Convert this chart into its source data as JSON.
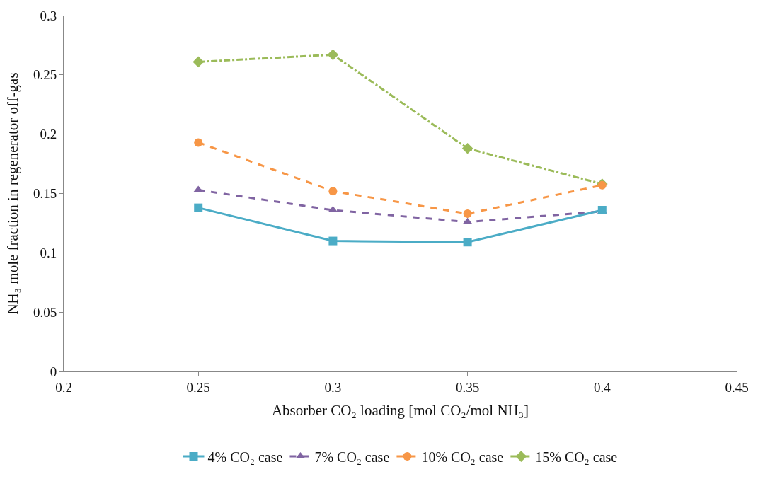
{
  "chart_data": {
    "type": "line",
    "xlabel": "Absorber CO₂ loading [mol CO₂/mol NH₃]",
    "ylabel": "NH₃ mole fraction in regenerator off-gas",
    "x": [
      0.25,
      0.3,
      0.35,
      0.4
    ],
    "series": [
      {
        "name": "4% CO₂ case",
        "color": "#4bacc6",
        "values": [
          0.138,
          0.11,
          0.109,
          0.136
        ],
        "marker": "square",
        "line_style": "solid"
      },
      {
        "name": "7% CO₂ case",
        "color": "#8064a2",
        "values": [
          0.153,
          0.136,
          0.126,
          0.135
        ],
        "marker": "triangle",
        "line_style": "dashed"
      },
      {
        "name": "10% CO₂ case",
        "color": "#f79646",
        "values": [
          0.193,
          0.152,
          0.133,
          0.157
        ],
        "marker": "circle",
        "line_style": "dashed"
      },
      {
        "name": "15% CO₂ case",
        "color": "#9bbb59",
        "values": [
          0.261,
          0.267,
          0.188,
          0.158
        ],
        "marker": "diamond",
        "line_style": "dashdot"
      }
    ],
    "xlim": [
      0.2,
      0.45
    ],
    "xticks": [
      0.2,
      0.25,
      0.3,
      0.35,
      0.4,
      0.45
    ],
    "ylim": [
      0,
      0.3
    ],
    "yticks": [
      0,
      0.05,
      0.1,
      0.15,
      0.2,
      0.25,
      0.3
    ],
    "legend": "bottom"
  }
}
